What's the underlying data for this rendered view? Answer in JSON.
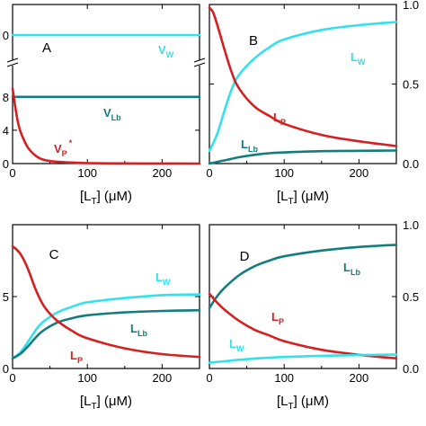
{
  "colors": {
    "cyan": "#33e0ee",
    "teal": "#137d7d",
    "red": "#d42020"
  },
  "chart_data": [
    {
      "panel": "A",
      "type": "line",
      "xlabel": "[L_T] (μM)",
      "xlim": [
        0,
        250
      ],
      "x_ticks": [
        "0",
        "100",
        "200"
      ],
      "y_ticks_main": [
        "0",
        "4",
        "8"
      ],
      "y_main_lim": [
        0,
        11
      ],
      "y_ticks_upper": [
        "0"
      ],
      "y_axis_break": true,
      "series": [
        {
          "name": "V_W",
          "label_main": "V",
          "label_sub": "W",
          "color": "cyan",
          "segment": "upper",
          "x": [
            0,
            50,
            100,
            150,
            200,
            250
          ],
          "y": [
            10,
            10,
            10,
            10,
            10,
            10
          ]
        },
        {
          "name": "V_Lb",
          "label_main": "V",
          "label_sub": "Lb",
          "color": "teal",
          "segment": "main",
          "x": [
            0,
            50,
            100,
            150,
            200,
            250
          ],
          "y": [
            8,
            8,
            8,
            8,
            8,
            8
          ]
        },
        {
          "name": "V*_P",
          "label_main": "V",
          "label_sub": "P",
          "label_sup": "*",
          "color": "red",
          "segment": "main",
          "x": [
            0,
            5,
            10,
            20,
            30,
            40,
            50,
            70,
            100,
            150,
            200,
            250
          ],
          "y": [
            9.0,
            6.0,
            4.0,
            2.0,
            1.0,
            0.5,
            0.3,
            0.15,
            0.05,
            0.02,
            0.01,
            0.0
          ]
        }
      ]
    },
    {
      "panel": "B",
      "type": "line",
      "xlabel": "[L_T] (μM)",
      "xlim": [
        0,
        250
      ],
      "ylim": [
        0,
        1
      ],
      "x_ticks": [
        "0",
        "100",
        "200"
      ],
      "y_ticks": [
        "0.0",
        "0.5",
        "1.0"
      ],
      "y_axis_side": "right",
      "series": [
        {
          "name": "L_W",
          "label_main": "L",
          "label_sub": "W",
          "color": "cyan",
          "x": [
            0,
            10,
            20,
            30,
            40,
            60,
            80,
            100,
            150,
            200,
            250
          ],
          "y": [
            0.08,
            0.18,
            0.33,
            0.47,
            0.56,
            0.66,
            0.73,
            0.78,
            0.84,
            0.87,
            0.89
          ]
        },
        {
          "name": "L_Lb",
          "label_main": "L",
          "label_sub": "Lb",
          "color": "teal",
          "x": [
            0,
            20,
            40,
            60,
            80,
            100,
            150,
            200,
            250
          ],
          "y": [
            0.0,
            0.02,
            0.04,
            0.055,
            0.065,
            0.07,
            0.078,
            0.08,
            0.082
          ]
        },
        {
          "name": "L_P",
          "label_main": "L",
          "label_sub": "P",
          "color": "red",
          "x": [
            0,
            5,
            10,
            20,
            30,
            40,
            60,
            80,
            100,
            150,
            200,
            250
          ],
          "y": [
            0.98,
            0.95,
            0.88,
            0.72,
            0.57,
            0.47,
            0.36,
            0.3,
            0.25,
            0.18,
            0.14,
            0.11
          ]
        }
      ]
    },
    {
      "panel": "C",
      "type": "line",
      "xlabel": "[L_T] (μM)",
      "xlim": [
        0,
        250
      ],
      "ylim": [
        0,
        10
      ],
      "x_ticks": [
        "0",
        "100",
        "200"
      ],
      "y_ticks": [
        "0",
        "5"
      ],
      "series": [
        {
          "name": "L_W",
          "label_main": "L",
          "label_sub": "W",
          "color": "cyan",
          "x": [
            0,
            10,
            20,
            30,
            40,
            60,
            80,
            100,
            150,
            200,
            250
          ],
          "y": [
            0.7,
            1.1,
            1.8,
            2.6,
            3.2,
            3.9,
            4.3,
            4.6,
            4.9,
            5.1,
            5.15
          ]
        },
        {
          "name": "L_Lb",
          "label_main": "L",
          "label_sub": "Lb",
          "color": "teal",
          "x": [
            0,
            10,
            20,
            30,
            40,
            60,
            80,
            100,
            150,
            200,
            250
          ],
          "y": [
            0.7,
            1.0,
            1.5,
            2.1,
            2.6,
            3.2,
            3.5,
            3.7,
            3.9,
            4.0,
            4.05
          ]
        },
        {
          "name": "L_P",
          "label_main": "L",
          "label_sub": "P",
          "color": "red",
          "x": [
            0,
            10,
            20,
            30,
            40,
            50,
            60,
            80,
            100,
            150,
            200,
            250
          ],
          "y": [
            8.5,
            8.0,
            7.0,
            5.6,
            4.5,
            3.8,
            3.3,
            2.6,
            2.1,
            1.4,
            1.0,
            0.8
          ]
        }
      ]
    },
    {
      "panel": "D",
      "type": "line",
      "xlabel": "[L_T] (μM)",
      "xlim": [
        0,
        250
      ],
      "ylim": [
        0,
        1
      ],
      "x_ticks": [
        "0",
        "100",
        "200"
      ],
      "y_ticks": [
        "0.0",
        "0.5",
        "1.0"
      ],
      "y_axis_side": "right",
      "series": [
        {
          "name": "L_Lb",
          "label_main": "L",
          "label_sub": "Lb",
          "color": "teal",
          "x": [
            0,
            10,
            20,
            40,
            60,
            80,
            100,
            150,
            200,
            250
          ],
          "y": [
            0.42,
            0.5,
            0.56,
            0.65,
            0.71,
            0.75,
            0.78,
            0.82,
            0.845,
            0.86
          ]
        },
        {
          "name": "L_P",
          "label_main": "L",
          "label_sub": "P",
          "color": "red",
          "x": [
            0,
            10,
            20,
            40,
            60,
            80,
            100,
            150,
            200,
            250
          ],
          "y": [
            0.52,
            0.46,
            0.41,
            0.33,
            0.27,
            0.23,
            0.19,
            0.13,
            0.095,
            0.07
          ]
        },
        {
          "name": "L_W",
          "label_main": "L",
          "label_sub": "W",
          "color": "cyan",
          "x": [
            0,
            20,
            50,
            80,
            100,
            150,
            200,
            250
          ],
          "y": [
            0.04,
            0.05,
            0.065,
            0.075,
            0.08,
            0.088,
            0.093,
            0.096
          ]
        }
      ]
    }
  ]
}
